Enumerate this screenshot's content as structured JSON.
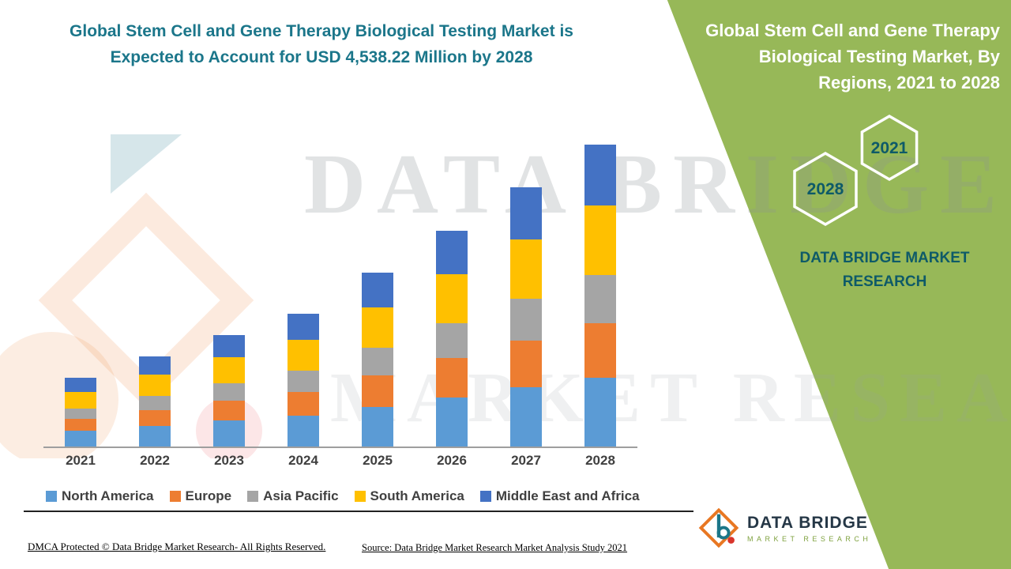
{
  "header": {
    "title_line1": "Global Stem Cell and Gene Therapy Biological Testing Market is",
    "title_line2": "Expected to Account for USD 4,538.22 Million by 2028"
  },
  "side_panel": {
    "title": "Global Stem Cell and Gene Therapy Biological Testing Market, By Regions, 2021 to 2028",
    "hexagon_years": [
      "2028",
      "2021"
    ],
    "brand_text": "DATA BRIDGE MARKET RESEARCH",
    "background_color": "#97B858"
  },
  "watermark": {
    "line1": "DATA BRIDGE",
    "line2": "MARKET RESEARCH"
  },
  "logo": {
    "name": "DATA BRIDGE",
    "subtext": "MARKET RESEARCH"
  },
  "footer": {
    "dmca": "DMCA Protected © Data Bridge Market Research- All Rights Reserved.",
    "source": "Source: Data Bridge Market Research Market Analysis Study 2021"
  },
  "chart_data": {
    "type": "bar",
    "stacked": true,
    "unit": "USD Million",
    "categories": [
      "2021",
      "2022",
      "2023",
      "2024",
      "2025",
      "2026",
      "2027",
      "2028"
    ],
    "series": [
      {
        "name": "North America",
        "color": "#5B9BD5",
        "values": [
          240,
          310,
          390,
          460,
          600,
          740,
          890,
          1030
        ]
      },
      {
        "name": "Europe",
        "color": "#ED7D31",
        "values": [
          180,
          240,
          300,
          360,
          470,
          590,
          700,
          820
        ]
      },
      {
        "name": "Asia Pacific",
        "color": "#A5A5A5",
        "values": [
          150,
          210,
          260,
          320,
          420,
          520,
          630,
          730
        ]
      },
      {
        "name": "South America",
        "color": "#FFC000",
        "values": [
          250,
          320,
          390,
          460,
          600,
          740,
          890,
          1040
        ]
      },
      {
        "name": "Middle East and Africa",
        "color": "#4472C4",
        "values": [
          220,
          280,
          340,
          400,
          530,
          660,
          790,
          918.22
        ]
      }
    ],
    "totals": [
      1040,
      1360,
      1680,
      2000,
      2620,
      3250,
      3900,
      4538.22
    ],
    "highlight_value_2028": "USD 4,538.22 Million",
    "ylim": [
      0,
      4600
    ],
    "legend_position": "bottom",
    "grid": false
  }
}
